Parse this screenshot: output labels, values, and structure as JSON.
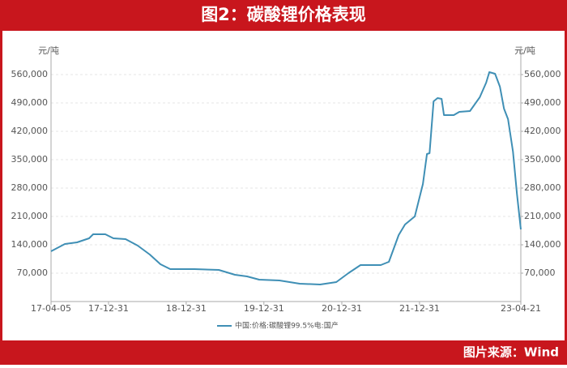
{
  "chart_data": {
    "type": "line",
    "title": "图2：碳酸锂价格表现",
    "source": "图片来源：Wind",
    "ylabel": "元/吨",
    "y2label": "元/吨",
    "x": [
      "17-04-05",
      "17-06-09",
      "17-08-05",
      "17-10-01",
      "17-10-20",
      "17-12-16",
      "18-01-23",
      "18-03-21",
      "18-05-17",
      "18-07-13",
      "18-09-01",
      "18-10-17",
      "19-02-08",
      "19-06-02",
      "19-08-17",
      "19-10-13",
      "19-12-09",
      "20-03-13",
      "20-06-16",
      "20-09-20",
      "20-12-05",
      "21-01-31",
      "21-03-29",
      "21-07-02",
      "21-08-09",
      "21-09-24",
      "21-10-24",
      "21-12-09",
      "22-01-16",
      "22-02-04",
      "22-02-16",
      "22-03-07",
      "22-03-26",
      "22-04-14",
      "22-04-25",
      "22-06-10",
      "22-07-06",
      "22-08-25",
      "22-10-10",
      "22-11-09",
      "22-11-24",
      "22-12-21",
      "23-01-13",
      "23-02-01",
      "23-02-20",
      "23-03-15",
      "23-04-03",
      "23-04-21"
    ],
    "series": [
      {
        "name": "中国:价格:碳酸锂99.5%电:国产",
        "color": "#3f8fb5",
        "values": [
          124000,
          142000,
          146000,
          156000,
          166000,
          166000,
          156000,
          154000,
          138000,
          116000,
          92000,
          80000,
          80000,
          78000,
          66000,
          62000,
          54000,
          52000,
          44000,
          42000,
          48000,
          70000,
          90000,
          90000,
          98000,
          164000,
          190000,
          210000,
          290000,
          364000,
          366000,
          494000,
          502000,
          500000,
          460000,
          460000,
          468000,
          470000,
          504000,
          540000,
          566000,
          562000,
          530000,
          476000,
          450000,
          370000,
          264000,
          178000
        ]
      }
    ],
    "xlim": [
      "17-04-05",
      "23-04-21"
    ],
    "xticks": [
      "17-04-05",
      "17-12-31",
      "18-12-31",
      "19-12-31",
      "20-12-31",
      "21-12-31",
      "23-04-21"
    ],
    "ylim": [
      0,
      630000
    ],
    "yticks": [
      {
        "value": 70000,
        "label": "70,000"
      },
      {
        "value": 140000,
        "label": "140,000"
      },
      {
        "value": 210000,
        "label": "210,000"
      },
      {
        "value": 280000,
        "label": "280,000"
      },
      {
        "value": 350000,
        "label": "350,000"
      },
      {
        "value": 420000,
        "label": "420,000"
      },
      {
        "value": 490000,
        "label": "490,000"
      },
      {
        "value": 560000,
        "label": "560,000"
      }
    ],
    "y2lim": [
      0,
      630000
    ],
    "y2ticks": [
      {
        "value": 70000,
        "label": "70,000"
      },
      {
        "value": 140000,
        "label": "140,000"
      },
      {
        "value": 210000,
        "label": "210,000"
      },
      {
        "value": 280000,
        "label": "280,000"
      },
      {
        "value": 350000,
        "label": "350,000"
      },
      {
        "value": 420000,
        "label": "420,000"
      },
      {
        "value": 490000,
        "label": "490,000"
      },
      {
        "value": 560000,
        "label": "560,000"
      }
    ],
    "grid": true
  }
}
